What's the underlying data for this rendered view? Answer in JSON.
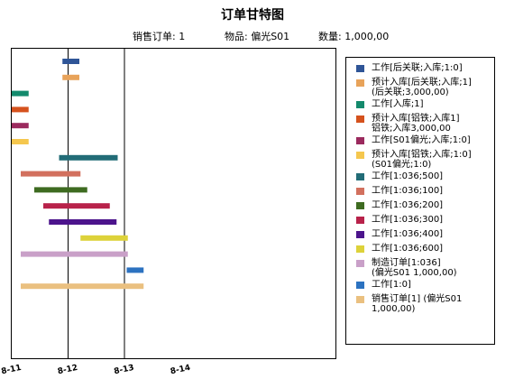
{
  "header": {
    "title": "订单甘特图",
    "order_text": "销售订单: 1",
    "item_text": "物品: 偏光S01",
    "qty_text": "数量: 1,000,00"
  },
  "chart_data": {
    "type": "gantt",
    "x_range": [
      0,
      2
    ],
    "x_ticks": [
      {
        "value": 0,
        "label": "8-11"
      },
      {
        "value": 0.5,
        "label": "8-12"
      },
      {
        "value": 1,
        "label": "8-13"
      },
      {
        "value": 1.5,
        "label": "8-14"
      }
    ],
    "reference_lines": [
      0.5,
      1
    ],
    "tasks": [
      {
        "name": "工作[后关联;入库;1:0]",
        "start": 0.45,
        "end": 0.6,
        "color": "#2F5597"
      },
      {
        "name": "预计入库[后关联;入库;1]\n(后关联;3,000,00)",
        "start": 0.45,
        "end": 0.6,
        "color": "#E8A35A"
      },
      {
        "name": "工作[入库;1]",
        "start": 0,
        "end": 0.15,
        "color": "#138A6C"
      },
      {
        "name": "预计入库[铝铁;入库1]\n铝铁;入库3,000,00",
        "start": 0,
        "end": 0.15,
        "color": "#D5521D"
      },
      {
        "name": "工作[S01偏光;入库;1:0]",
        "start": 0,
        "end": 0.15,
        "color": "#9B2A5E"
      },
      {
        "name": "预计入库[铝铁;入库;1:0]\n(S01偏光;1:0)",
        "start": 0,
        "end": 0.15,
        "color": "#F5C74E"
      },
      {
        "name": "工作[1:036;500]",
        "start": 0.42,
        "end": 0.94,
        "color": "#226C77"
      },
      {
        "name": "工作[1:036;100]",
        "start": 0.08,
        "end": 0.61,
        "color": "#D2705E"
      },
      {
        "name": "工作[1:036;200]",
        "start": 0.2,
        "end": 0.67,
        "color": "#3E6B21"
      },
      {
        "name": "工作[1:036;300]",
        "start": 0.28,
        "end": 0.87,
        "color": "#B8224A"
      },
      {
        "name": "工作[1:036;400]",
        "start": 0.33,
        "end": 0.93,
        "color": "#4C148C"
      },
      {
        "name": "工作[1:036;600]",
        "start": 0.61,
        "end": 1.03,
        "color": "#DDD23A"
      },
      {
        "name": "制造订单[1:036]\n(偏光S01  1,000,00)",
        "start": 0.08,
        "end": 1.03,
        "color": "#C9A0C8"
      },
      {
        "name": "工作[1:0]",
        "start": 1.02,
        "end": 1.17,
        "color": "#2C72C0"
      },
      {
        "name": "销售订单[1]  (偏光S01\n1,000,00)",
        "start": 0.08,
        "end": 1.17,
        "color": "#EAC080"
      }
    ]
  }
}
